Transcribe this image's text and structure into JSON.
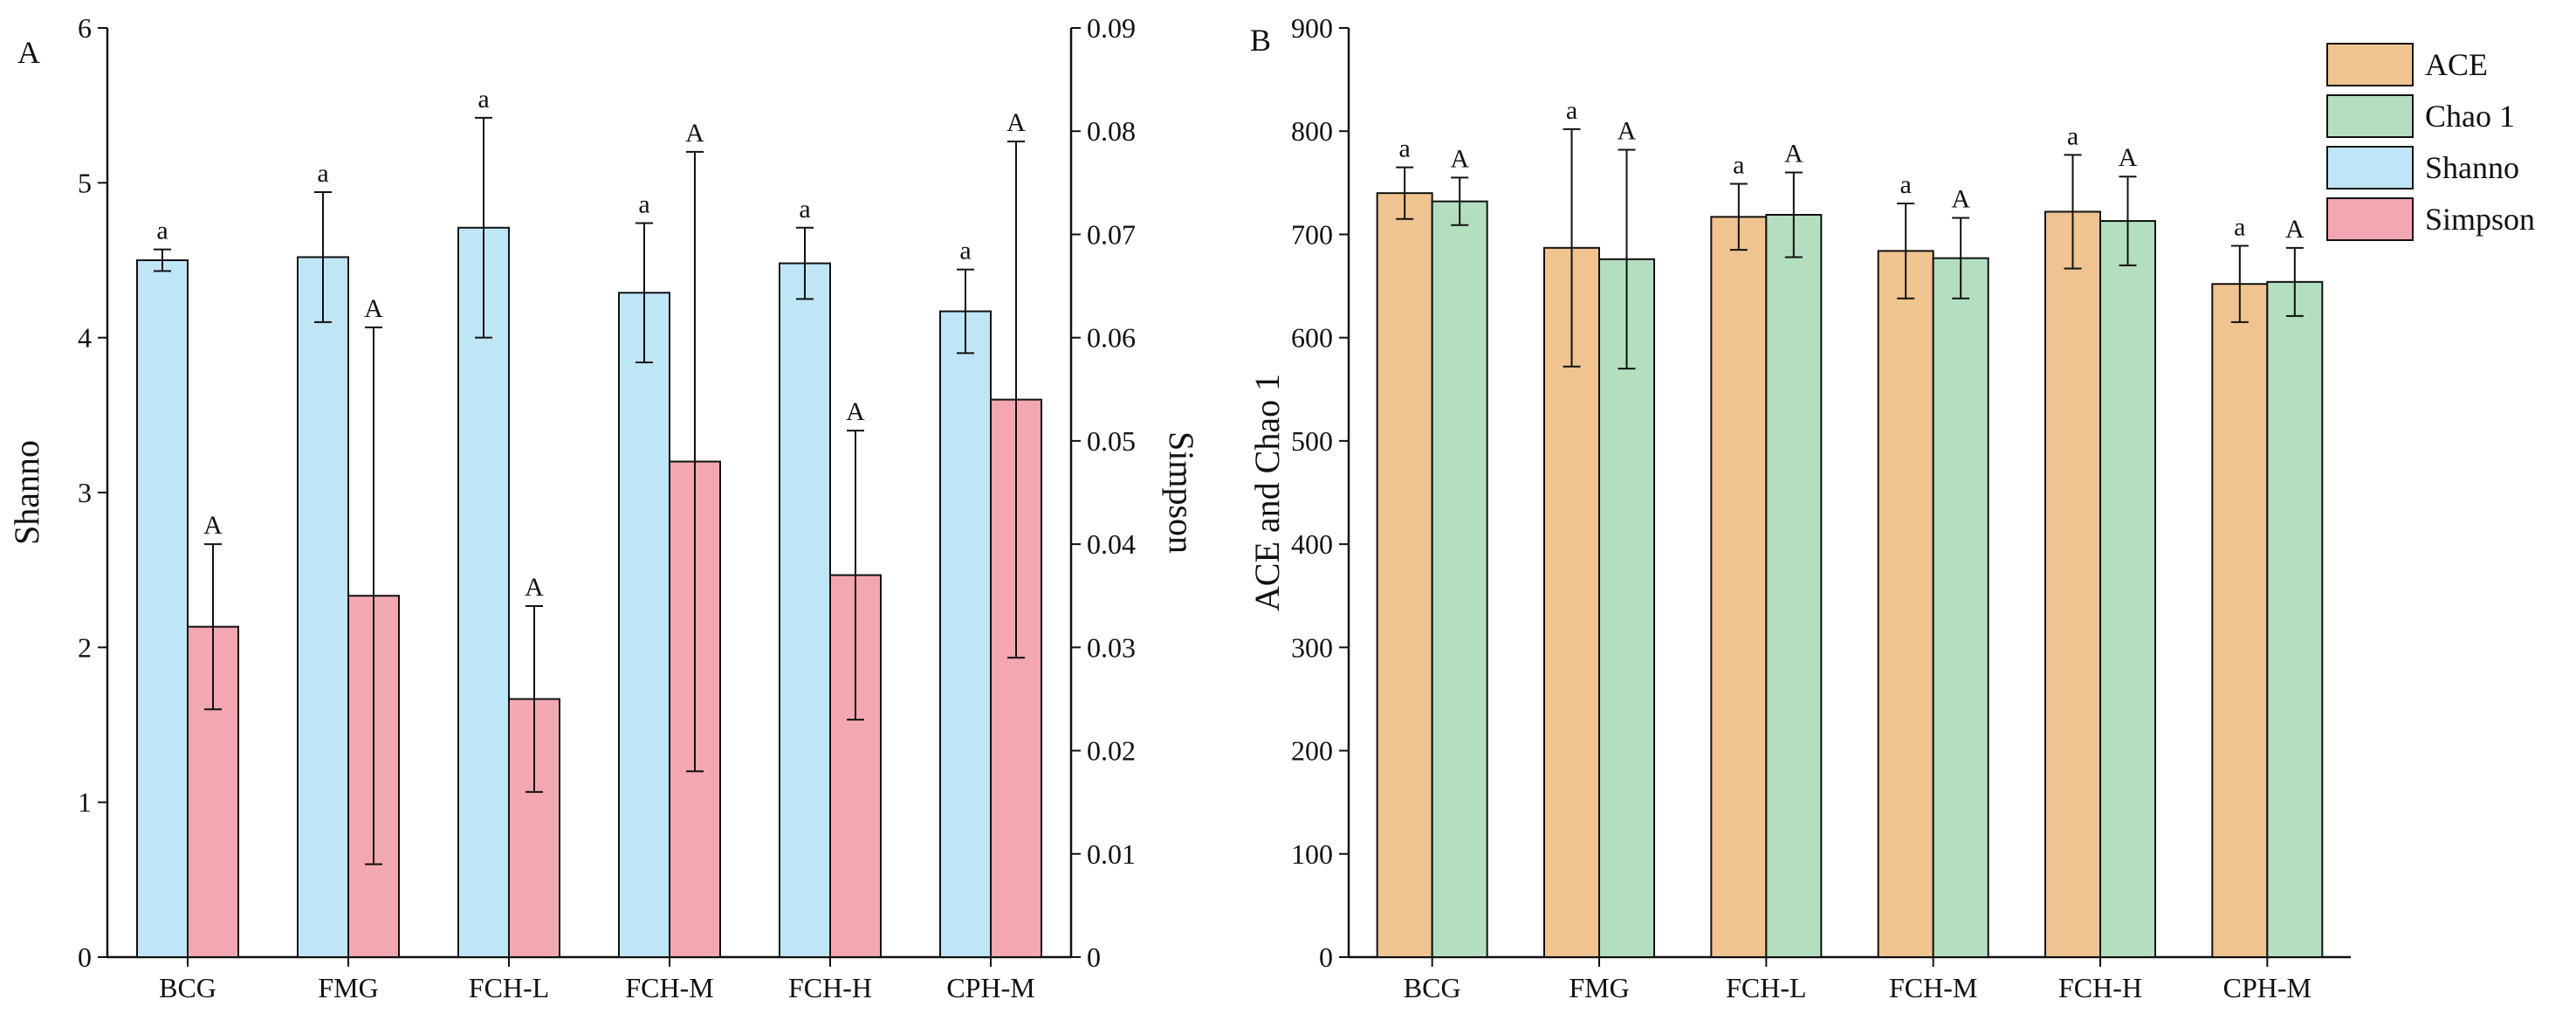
{
  "colors": {
    "shanno": "#bfe6f7",
    "simpson": "#f3a7b0",
    "ace": "#f0c490",
    "chao1": "#b3dfc0",
    "axis": "#111111"
  },
  "panels": {
    "a": {
      "label": "A"
    },
    "b": {
      "label": "B"
    }
  },
  "legend": [
    {
      "key": "ace",
      "label": "ACE"
    },
    {
      "key": "chao1",
      "label": "Chao 1"
    },
    {
      "key": "shanno",
      "label": "Shanno"
    },
    {
      "key": "simpson",
      "label": "Simpson"
    }
  ],
  "chart_data": [
    {
      "id": "panel-a",
      "type": "bar",
      "panel_label": "A",
      "categories": [
        "BCG",
        "FMG",
        "FCH-L",
        "FCH-M",
        "FCH-H",
        "CPH-M"
      ],
      "ylabel": "Shanno",
      "ylim": [
        0,
        6
      ],
      "yticks": [
        "0",
        "1",
        "2",
        "3",
        "4",
        "5",
        "6"
      ],
      "y2label": "Simpson",
      "y2lim": [
        0,
        0.09
      ],
      "y2ticks": [
        "0",
        "0.01",
        "0.02",
        "0.03",
        "0.04",
        "0.05",
        "0.06",
        "0.07",
        "0.08",
        "0.09"
      ],
      "series": [
        {
          "name": "Shanno",
          "key": "shanno",
          "axis": "left",
          "values": [
            4.5,
            4.52,
            4.71,
            4.29,
            4.48,
            4.17
          ],
          "errors": [
            0.07,
            0.42,
            0.71,
            0.45,
            0.23,
            0.27
          ],
          "letters": [
            "a",
            "a",
            "a",
            "a",
            "a",
            "a"
          ]
        },
        {
          "name": "Simpson",
          "key": "simpson",
          "axis": "right",
          "values": [
            0.032,
            0.035,
            0.025,
            0.048,
            0.037,
            0.054
          ],
          "errors": [
            0.008,
            0.026,
            0.009,
            0.03,
            0.014,
            0.025
          ],
          "letters": [
            "A",
            "A",
            "A",
            "A",
            "A",
            "A"
          ]
        }
      ]
    },
    {
      "id": "panel-b",
      "type": "bar",
      "panel_label": "B",
      "categories": [
        "BCG",
        "FMG",
        "FCH-L",
        "FCH-M",
        "FCH-H",
        "CPH-M"
      ],
      "ylabel": "ACE and Chao 1",
      "ylim": [
        0,
        900
      ],
      "yticks": [
        "0",
        "100",
        "200",
        "300",
        "400",
        "500",
        "600",
        "700",
        "800",
        "900"
      ],
      "series": [
        {
          "name": "ACE",
          "key": "ace",
          "values": [
            740,
            687,
            717,
            684,
            722,
            652
          ],
          "errors": [
            25,
            115,
            32,
            46,
            55,
            37
          ],
          "letters": [
            "a",
            "a",
            "a",
            "a",
            "a",
            "a"
          ]
        },
        {
          "name": "Chao 1",
          "key": "chao1",
          "values": [
            732,
            676,
            719,
            677,
            713,
            654
          ],
          "errors": [
            23,
            106,
            41,
            39,
            43,
            33
          ],
          "letters": [
            "A",
            "A",
            "A",
            "A",
            "A",
            "A"
          ]
        }
      ]
    }
  ]
}
